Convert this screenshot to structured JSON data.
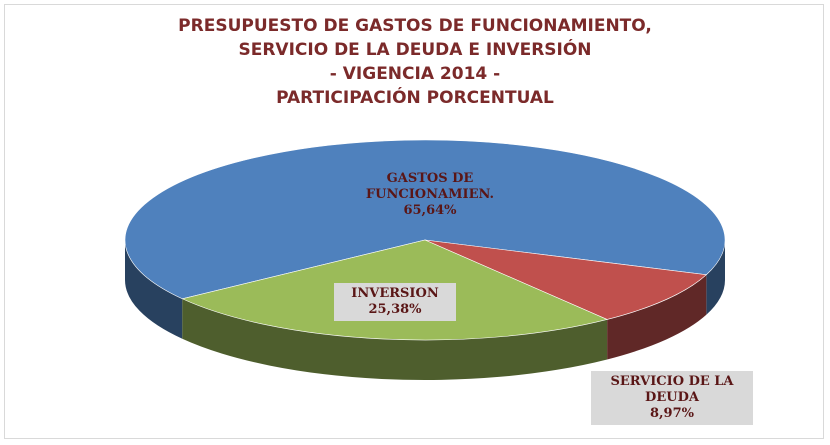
{
  "chart_data": {
    "type": "pie",
    "title": "PRESUPUESTO DE GASTOS DE FUNCIONAMIENTO,\nSERVICIO DE LA DEUDA E INVERSIÓN\n- VIGENCIA 2014 -\nPARTICIPACIÓN PORCENTUAL",
    "categories": [
      "GASTOS DE FUNCIONAMIEN.",
      "SERVICIO DE LA DEUDA",
      "INVERSION"
    ],
    "values": [
      65.64,
      8.97,
      25.38
    ],
    "value_labels": [
      "65,64%",
      "8,97%",
      "25,38%"
    ],
    "colors": [
      "#4f81bd",
      "#c0504d",
      "#9bbb59"
    ]
  }
}
